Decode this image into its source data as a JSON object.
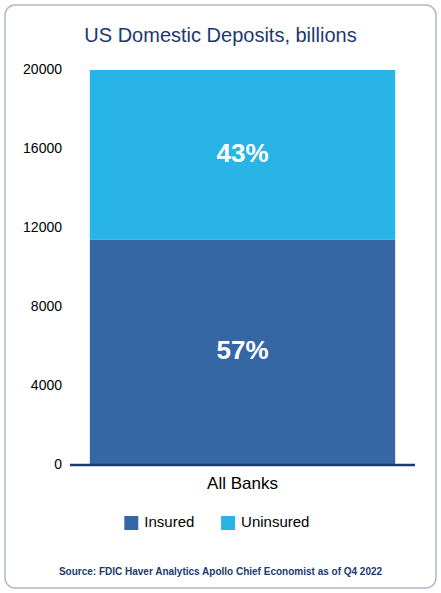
{
  "chart_data": {
    "type": "bar",
    "stacked": true,
    "title": "US Domestic Deposits, billions",
    "categories": [
      "All Banks"
    ],
    "series": [
      {
        "name": "Insured",
        "color": "#3567a5",
        "values": [
          11400
        ],
        "share_labels": [
          "57%"
        ]
      },
      {
        "name": "Uninsured",
        "color": "#29b4e8",
        "values": [
          8600
        ],
        "share_labels": [
          "43%"
        ]
      }
    ],
    "ylim": [
      0,
      20000
    ],
    "yticks": [
      0,
      4000,
      8000,
      12000,
      16000,
      20000
    ],
    "grid": false,
    "legend": "bottom",
    "source": "Source: FDIC Haver Analytics Apollo Chief Economist as of Q4 2022"
  }
}
